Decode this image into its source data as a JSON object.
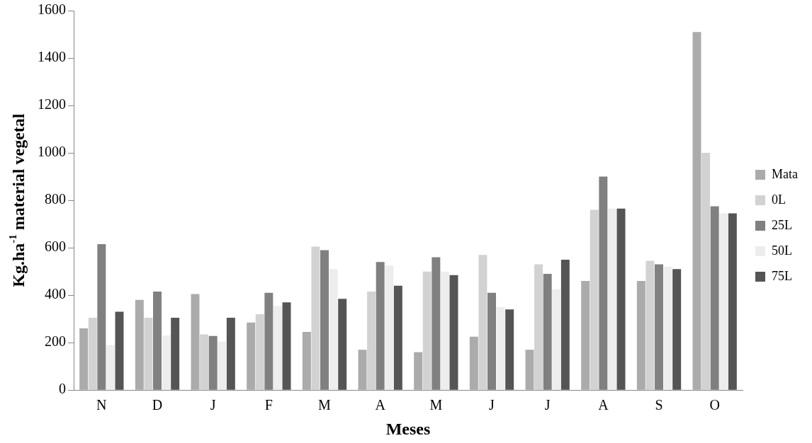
{
  "chart_data": {
    "type": "bar",
    "xlabel": "Meses",
    "ylabel": "Kg.ha$^{-1}$ material vegetal",
    "categories": [
      "N",
      "D",
      "J",
      "F",
      "M",
      "A",
      "M",
      "J",
      "J",
      "A",
      "S",
      "O"
    ],
    "series": [
      {
        "name": "Mata",
        "color": "#ababab",
        "values": [
          260,
          380,
          405,
          285,
          245,
          170,
          160,
          225,
          170,
          460,
          460,
          1510
        ]
      },
      {
        "name": "0L",
        "color": "#d2d2d2",
        "values": [
          305,
          305,
          235,
          320,
          605,
          415,
          500,
          570,
          530,
          760,
          545,
          1000
        ]
      },
      {
        "name": "25L",
        "color": "#808080",
        "values": [
          615,
          415,
          228,
          410,
          590,
          540,
          560,
          410,
          490,
          900,
          530,
          775
        ]
      },
      {
        "name": "50L",
        "color": "#ededed",
        "values": [
          190,
          230,
          205,
          355,
          510,
          525,
          500,
          350,
          425,
          765,
          520,
          745
        ]
      },
      {
        "name": "75L",
        "color": "#555555",
        "values": [
          330,
          305,
          305,
          370,
          385,
          440,
          485,
          340,
          550,
          765,
          510,
          745
        ]
      }
    ],
    "ylim": [
      0,
      1600
    ],
    "yticks": [
      0,
      200,
      400,
      600,
      800,
      1000,
      1200,
      1400,
      1600
    ],
    "grid": false,
    "legend": "right"
  }
}
